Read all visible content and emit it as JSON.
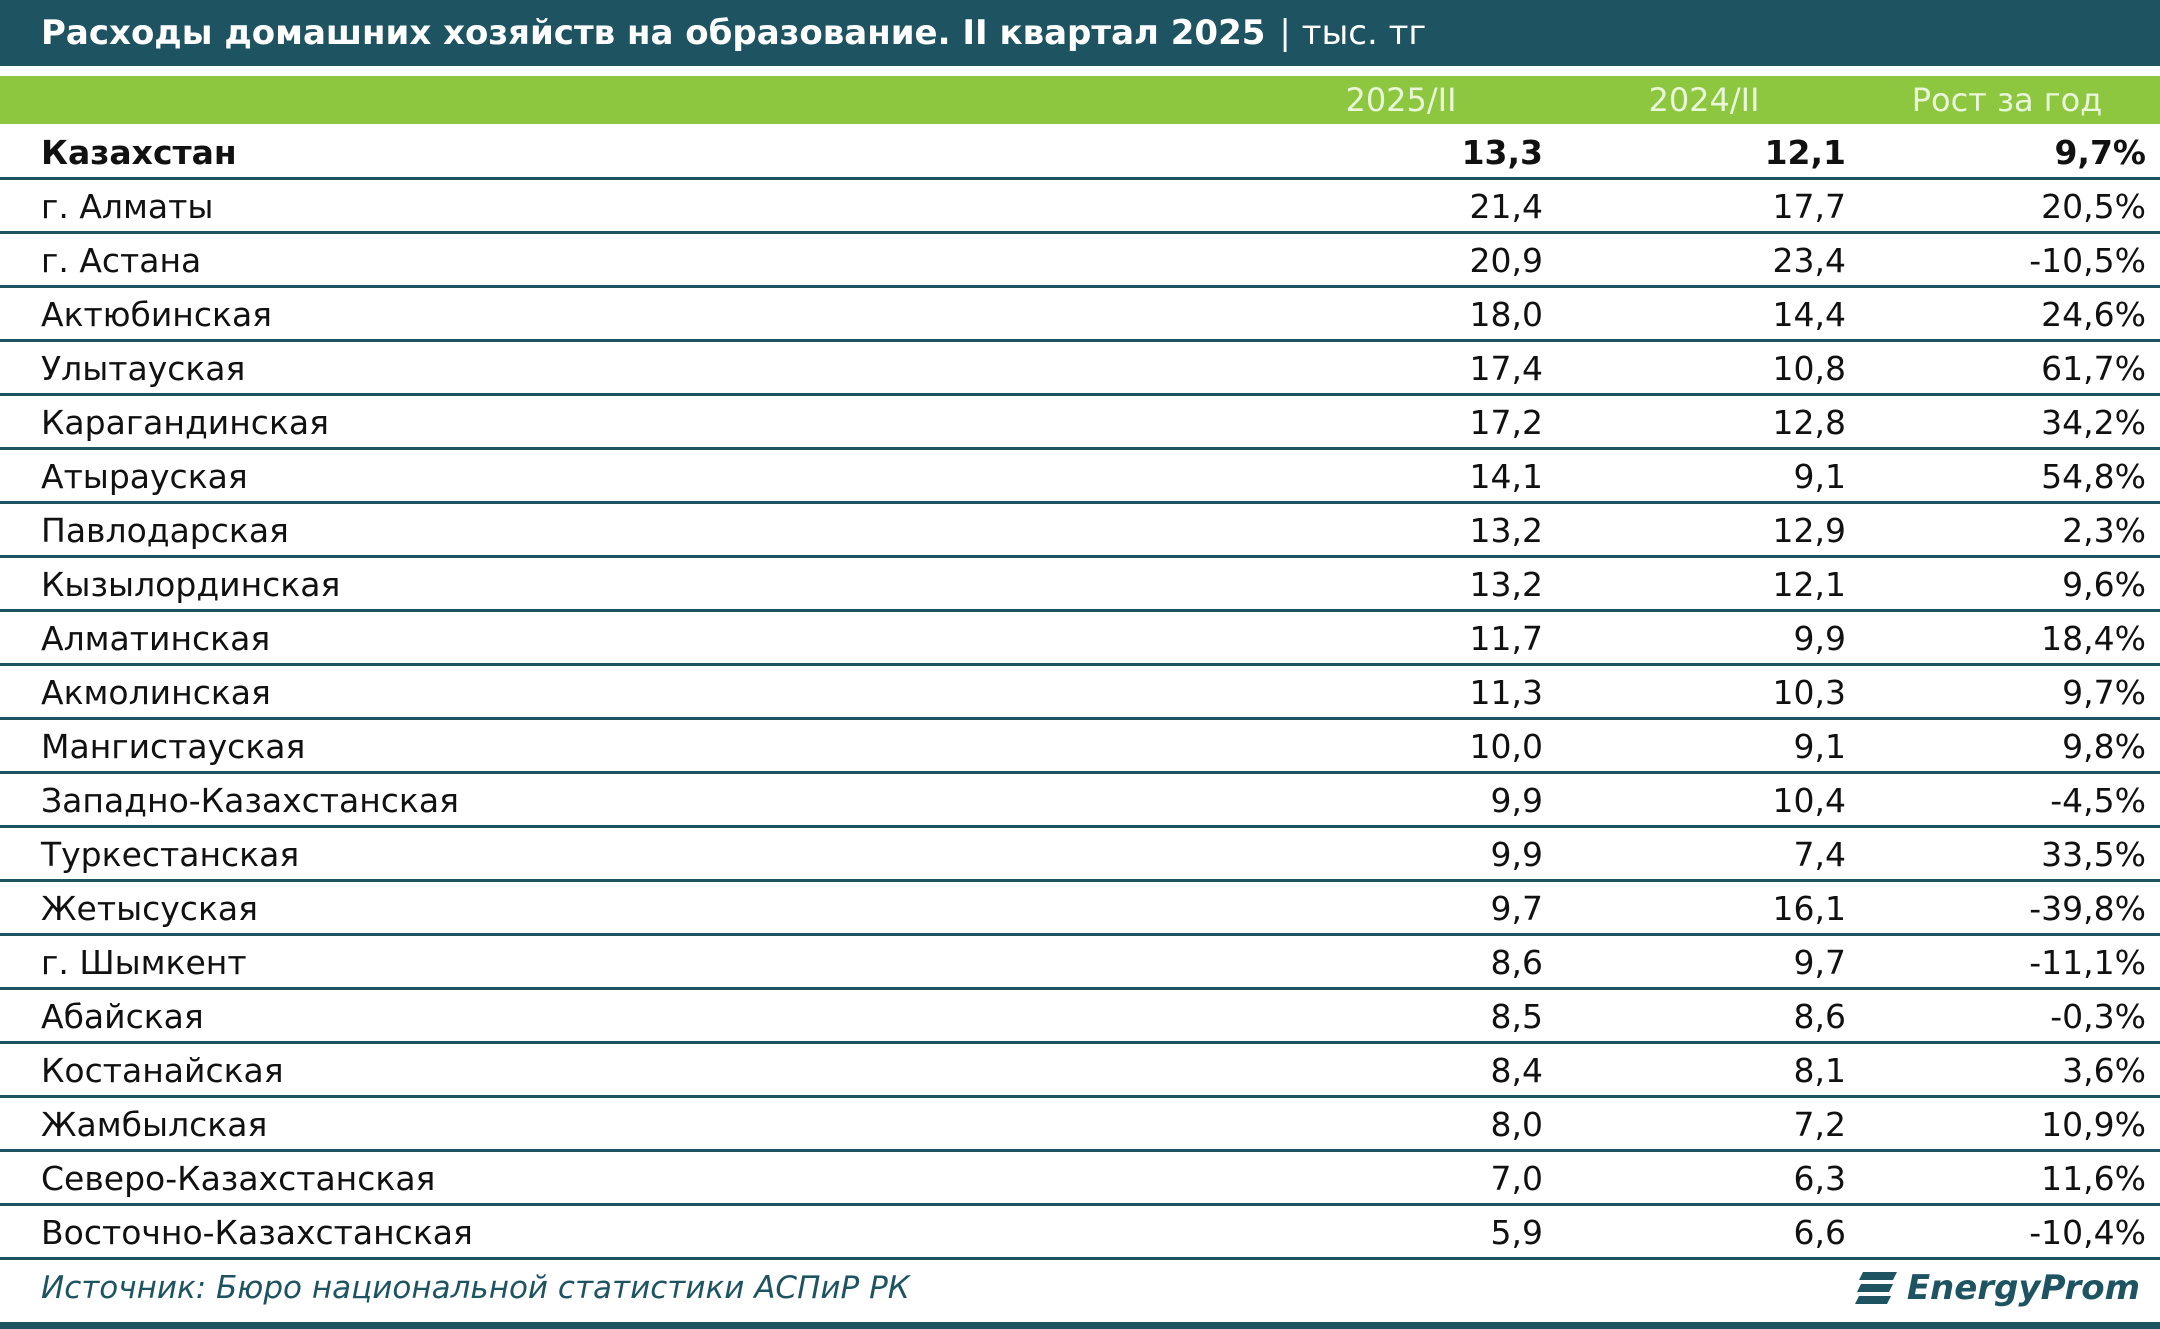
{
  "header": {
    "title": "Расходы домашних хозяйств на образование. II квартал 2025",
    "unit": "| тыс. тг"
  },
  "table": {
    "columns": [
      "",
      "2025/II",
      "2024/II",
      "Рост за год"
    ],
    "rows": [
      [
        "Казахстан",
        "13,3",
        "12,1",
        "9,7%"
      ],
      [
        "г. Алматы",
        "21,4",
        "17,7",
        "20,5%"
      ],
      [
        "г. Астана",
        "20,9",
        "23,4",
        "-10,5%"
      ],
      [
        "Актюбинская",
        "18,0",
        "14,4",
        "24,6%"
      ],
      [
        "Улытауская",
        "17,4",
        "10,8",
        "61,7%"
      ],
      [
        "Карагандинская",
        "17,2",
        "12,8",
        "34,2%"
      ],
      [
        "Атырауская",
        "14,1",
        "9,1",
        "54,8%"
      ],
      [
        "Павлодарская",
        "13,2",
        "12,9",
        "2,3%"
      ],
      [
        "Кызылординская",
        "13,2",
        "12,1",
        "9,6%"
      ],
      [
        "Алматинская",
        "11,7",
        "9,9",
        "18,4%"
      ],
      [
        "Акмолинская",
        "11,3",
        "10,3",
        "9,7%"
      ],
      [
        "Мангистауская",
        "10,0",
        "9,1",
        "9,8%"
      ],
      [
        "Западно-Казахстанская",
        "9,9",
        "10,4",
        "-4,5%"
      ],
      [
        "Туркестанская",
        "9,9",
        "7,4",
        "33,5%"
      ],
      [
        "Жетысуская",
        "9,7",
        "16,1",
        "-39,8%"
      ],
      [
        "г. Шымкент",
        "8,6",
        "9,7",
        "-11,1%"
      ],
      [
        "Абайская",
        "8,5",
        "8,6",
        "-0,3%"
      ],
      [
        "Костанайская",
        "8,4",
        "8,1",
        "3,6%"
      ],
      [
        "Жамбылская",
        "8,0",
        "7,2",
        "10,9%"
      ],
      [
        "Северо-Казахстанская",
        "7,0",
        "6,3",
        "11,6%"
      ],
      [
        "Восточно-Казахстанская",
        "5,9",
        "6,6",
        "-10,4%"
      ]
    ]
  },
  "footer": {
    "source": "Источник: Бюро национальной статистики АСПиР РК",
    "logo": "EnergyProm"
  }
}
